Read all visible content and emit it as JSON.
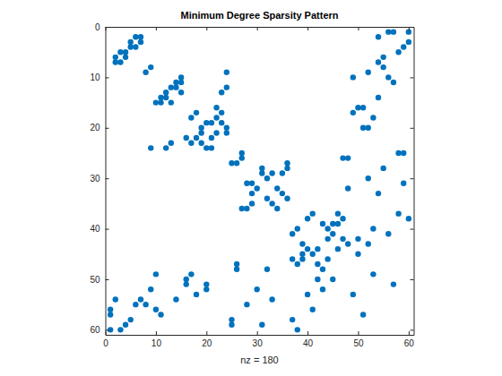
{
  "chart_data": {
    "type": "spy",
    "title": "Minimum Degree Sparsity Pattern",
    "x_label": "nz = 180",
    "color": "#0072bd",
    "marker": "circle",
    "xlim": [
      0,
      61
    ],
    "ylim": [
      0,
      61
    ],
    "xticks": [
      0,
      10,
      20,
      30,
      40,
      50,
      60
    ],
    "yticks": [
      0,
      10,
      20,
      30,
      40,
      50,
      60
    ],
    "grid": false,
    "x": [
      1,
      1,
      1,
      2,
      2,
      2,
      3,
      3,
      3,
      4,
      4,
      4,
      5,
      6,
      7,
      8,
      8,
      9,
      9,
      10,
      10,
      10,
      11,
      11,
      11,
      12,
      12,
      12,
      13,
      14,
      16,
      16,
      16,
      17,
      17,
      17,
      18,
      18,
      19,
      19,
      19,
      20,
      20,
      20,
      21,
      21,
      25,
      25,
      25,
      26,
      26,
      26,
      27,
      28,
      28,
      28,
      29,
      29,
      29,
      30,
      30,
      31,
      32,
      32,
      33,
      33,
      34,
      37,
      38,
      37,
      37,
      38,
      38,
      39,
      39,
      39,
      40,
      40,
      41,
      41,
      42,
      42,
      42,
      43,
      43,
      44,
      45,
      49,
      51,
      13,
      56,
      57,
      60,
      6,
      7,
      54,
      5,
      7,
      60,
      5,
      6,
      59,
      58,
      55,
      54,
      9,
      55,
      52,
      24,
      15,
      49,
      56,
      14,
      15,
      57,
      14,
      13,
      24,
      15,
      54,
      22,
      50,
      51,
      18,
      23,
      49,
      22,
      53,
      21,
      20,
      23,
      24,
      51,
      52,
      22,
      24,
      27,
      58,
      59,
      27,
      47,
      48,
      36,
      31,
      36,
      55,
      31,
      33,
      35,
      32,
      52,
      59,
      34,
      48,
      35,
      54,
      36,
      58,
      60,
      41,
      46,
      40,
      47,
      43,
      45,
      46,
      44,
      53,
      45,
      56,
      44,
      47,
      50,
      48,
      52,
      46,
      50,
      53,
      57,
      23
    ],
    "y": [
      56,
      57,
      60,
      6,
      7,
      54,
      5,
      7,
      60,
      5,
      6,
      59,
      58,
      55,
      54,
      9,
      55,
      52,
      24,
      15,
      49,
      56,
      14,
      15,
      57,
      14,
      13,
      24,
      15,
      54,
      22,
      50,
      51,
      18,
      23,
      49,
      22,
      53,
      21,
      20,
      23,
      24,
      51,
      52,
      22,
      24,
      27,
      58,
      59,
      27,
      47,
      48,
      36,
      31,
      36,
      55,
      31,
      33,
      35,
      32,
      52,
      59,
      34,
      48,
      35,
      54,
      36,
      58,
      60,
      41,
      46,
      40,
      47,
      43,
      45,
      46,
      44,
      53,
      45,
      56,
      44,
      47,
      50,
      48,
      52,
      46,
      50,
      53,
      57,
      23,
      1,
      1,
      1,
      2,
      2,
      2,
      3,
      3,
      3,
      4,
      4,
      4,
      5,
      6,
      7,
      8,
      8,
      9,
      9,
      10,
      10,
      10,
      11,
      11,
      11,
      12,
      12,
      12,
      13,
      14,
      16,
      16,
      16,
      17,
      17,
      17,
      18,
      18,
      19,
      19,
      19,
      20,
      20,
      20,
      21,
      21,
      25,
      25,
      25,
      26,
      26,
      26,
      27,
      28,
      28,
      28,
      29,
      29,
      29,
      30,
      30,
      31,
      32,
      32,
      33,
      33,
      34,
      37,
      38,
      37,
      37,
      38,
      38,
      39,
      39,
      39,
      40,
      40,
      41,
      41,
      42,
      42,
      42,
      43,
      43,
      44,
      45,
      49,
      51,
      13
    ]
  }
}
